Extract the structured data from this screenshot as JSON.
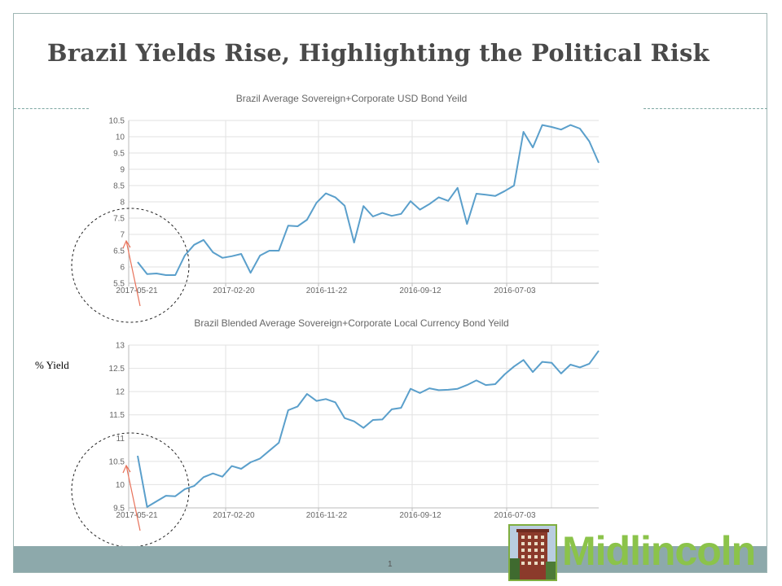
{
  "slide": {
    "title": "Brazil Yields Rise, Highlighting the Political Risk",
    "y_side_label": "% Yield",
    "page_number": "1",
    "logo_text": "Midlincoln"
  },
  "colors": {
    "line": "#5a9fcb",
    "grid": "#e2e2e2",
    "axis": "#bbbbbb",
    "arrow": "#e8725a",
    "footer": "#8da9ab",
    "logo": "#8bc34a",
    "frame": "#9fb6b4"
  },
  "chart_data": [
    {
      "type": "line",
      "title": "Brazil Average Sovereign+Corporate  USD Bond Yeild",
      "xlabel": "",
      "ylabel": "",
      "ylim": [
        5.5,
        10.5
      ],
      "yticks": [
        "5.5",
        "6",
        "6.5",
        "7",
        "7.5",
        "8",
        "8.5",
        "9",
        "9.5",
        "10",
        "10.5"
      ],
      "x_tick_labels": [
        "2017-05-21",
        "2017-02-20",
        "2016-11-22",
        "2016-09-12",
        "2016-07-03"
      ],
      "x_tick_index": [
        0,
        10,
        20,
        30,
        40
      ],
      "grid": true,
      "annotation": "dashed circle with red arrow highlighting the left (most recent) end of the series",
      "series": [
        {
          "values": [
            6.15,
            5.78,
            5.8,
            5.75,
            5.75,
            6.35,
            6.68,
            6.83,
            6.45,
            6.28,
            6.33,
            6.4,
            5.82,
            6.35,
            6.5,
            6.5,
            7.27,
            7.25,
            7.45,
            7.97,
            8.26,
            8.14,
            7.88,
            6.75,
            7.87,
            7.55,
            7.66,
            7.57,
            7.63,
            8.02,
            7.76,
            7.93,
            8.14,
            8.03,
            8.43,
            7.32,
            8.25,
            8.22,
            8.18,
            8.33,
            8.5,
            10.15,
            9.67,
            10.36,
            10.3,
            10.22,
            10.36,
            10.25,
            9.86,
            9.2
          ]
        }
      ]
    },
    {
      "type": "line",
      "title": "Brazil Blended Average Sovereign+Corporate   Local Currency Bond Yeild",
      "xlabel": "",
      "ylabel": "",
      "ylim": [
        9.5,
        13
      ],
      "yticks": [
        "9.5",
        "10",
        "10.5",
        "11",
        "11.5",
        "12",
        "12.5",
        "13"
      ],
      "x_tick_labels": [
        "2017-05-21",
        "2017-02-20",
        "2016-11-22",
        "2016-09-12",
        "2016-07-03"
      ],
      "x_tick_index": [
        0,
        10,
        20,
        30,
        40
      ],
      "grid": true,
      "annotation": "dashed circle with red arrow highlighting the left (most recent) end of the series",
      "series": [
        {
          "values": [
            10.62,
            9.52,
            9.64,
            9.76,
            9.75,
            9.9,
            9.97,
            10.16,
            10.24,
            10.17,
            10.4,
            10.34,
            10.48,
            10.56,
            10.73,
            10.9,
            11.6,
            11.68,
            11.95,
            11.8,
            11.84,
            11.77,
            11.43,
            11.36,
            11.22,
            11.39,
            11.4,
            11.62,
            11.65,
            12.06,
            11.97,
            12.07,
            12.03,
            12.04,
            12.06,
            12.14,
            12.24,
            12.14,
            12.16,
            12.37,
            12.54,
            12.68,
            12.42,
            12.64,
            12.62,
            12.39,
            12.58,
            12.52,
            12.6,
            12.88
          ]
        }
      ]
    }
  ]
}
